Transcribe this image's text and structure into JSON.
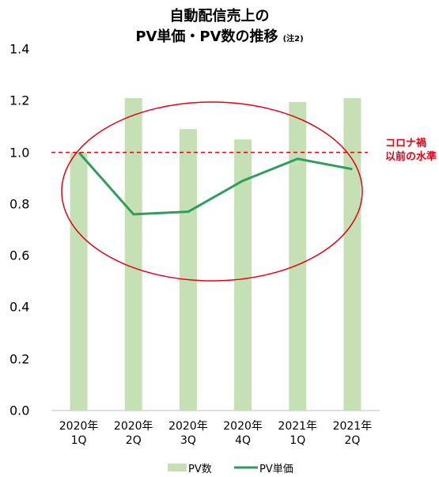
{
  "chart_data": {
    "type": "bar_line",
    "title": "自動配信売上の\nPV単価・PV数の推移",
    "title_note": "(注2)",
    "categories": [
      "2020年\n1Q",
      "2020年\n2Q",
      "2020年\n3Q",
      "2020年\n4Q",
      "2021年\n1Q",
      "2021年\n2Q"
    ],
    "series": [
      {
        "name": "PV数",
        "type": "bar",
        "color": "#c5e0b4",
        "values": [
          1.0,
          1.21,
          1.09,
          1.05,
          1.195,
          1.21
        ]
      },
      {
        "name": "PV単価",
        "type": "line",
        "color": "#2e9e5b",
        "values": [
          1.0,
          0.76,
          0.77,
          0.89,
          0.975,
          0.935
        ]
      }
    ],
    "ylim": [
      0,
      1.4
    ],
    "yticks": [
      {
        "value": 0,
        "label": "0.0"
      },
      0.2,
      0.4,
      0.6,
      0.8,
      {
        "value": 1,
        "label": "1.0"
      },
      1.2,
      1.4
    ],
    "annotations": [
      {
        "text": "コロナ禍\n以前の水準",
        "y": 1.0,
        "color": "#e60012"
      }
    ]
  }
}
